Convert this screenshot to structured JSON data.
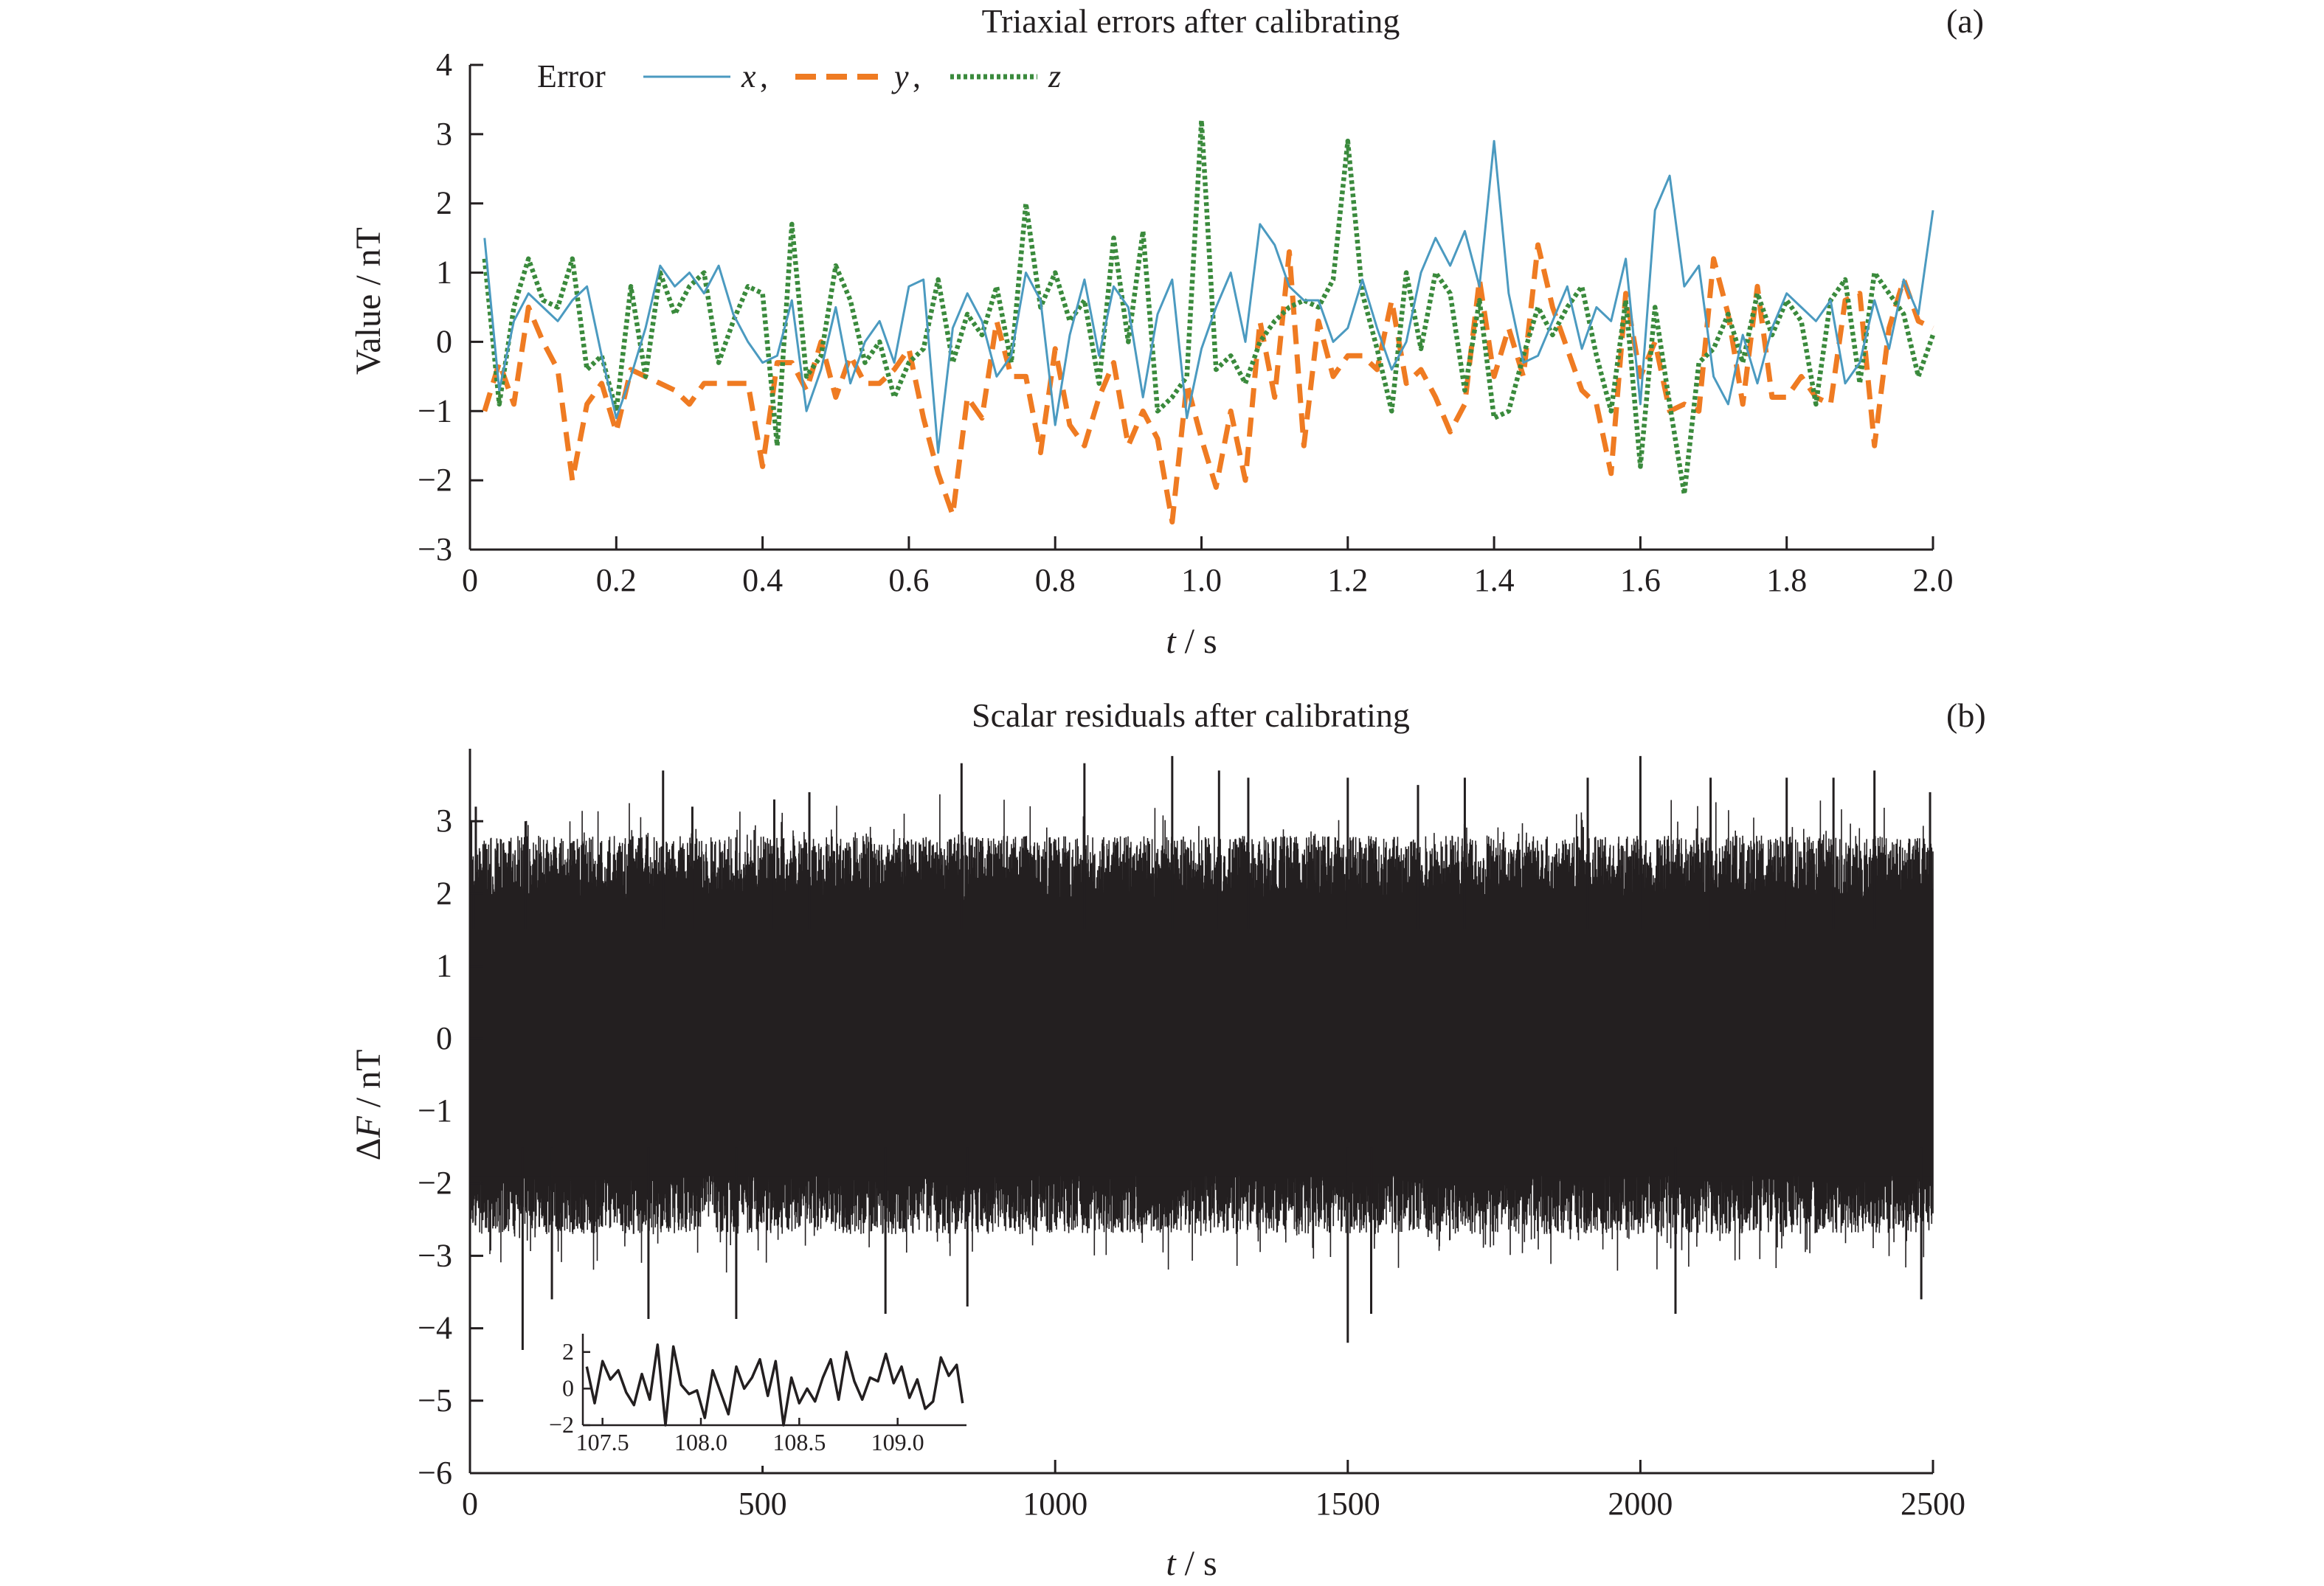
{
  "colors": {
    "x": "#4b9ac0",
    "y": "#ef7b22",
    "z": "#3a8a3c",
    "residual": "#231f20",
    "axis": "#231f20"
  },
  "panel_a": {
    "title": "Triaxial errors after calibrating",
    "tag": "(a)",
    "ylabel": "Value / nT",
    "xlabel_var": "t",
    "xlabel_unit": " / s",
    "legend": {
      "title": "Error",
      "x_label": "x",
      "y_label": "y",
      "z_label": "z",
      "sep": ","
    }
  },
  "panel_b": {
    "title": "Scalar residuals after calibrating",
    "tag": "(b)",
    "ylabel_prefix": "Δ",
    "ylabel_var": "F",
    "ylabel_unit": " / nT",
    "xlabel_var": "t",
    "xlabel_unit": " / s"
  },
  "chart_data": [
    {
      "type": "line",
      "title": "Triaxial errors after calibrating",
      "xlabel": "t / s",
      "ylabel": "Value / nT",
      "xlim": [
        0,
        2.0
      ],
      "ylim": [
        -3,
        4
      ],
      "xticks": [
        "0",
        "0.2",
        "0.4",
        "0.6",
        "0.8",
        "1.0",
        "1.2",
        "1.4",
        "1.6",
        "1.8",
        "2.0"
      ],
      "yticks": [
        "−3",
        "−2",
        "−1",
        "0",
        "1",
        "2",
        "3",
        "4"
      ],
      "legend_position": "top-left",
      "grid": false,
      "x": [
        0.02,
        0.04,
        0.06,
        0.08,
        0.1,
        0.12,
        0.14,
        0.16,
        0.18,
        0.2,
        0.22,
        0.24,
        0.26,
        0.28,
        0.3,
        0.32,
        0.34,
        0.36,
        0.38,
        0.4,
        0.42,
        0.44,
        0.46,
        0.48,
        0.5,
        0.52,
        0.54,
        0.56,
        0.58,
        0.6,
        0.62,
        0.64,
        0.66,
        0.68,
        0.7,
        0.72,
        0.74,
        0.76,
        0.78,
        0.8,
        0.82,
        0.84,
        0.86,
        0.88,
        0.9,
        0.92,
        0.94,
        0.96,
        0.98,
        1.0,
        1.02,
        1.04,
        1.06,
        1.08,
        1.1,
        1.12,
        1.14,
        1.16,
        1.18,
        1.2,
        1.22,
        1.24,
        1.26,
        1.28,
        1.3,
        1.32,
        1.34,
        1.36,
        1.38,
        1.4,
        1.42,
        1.44,
        1.46,
        1.48,
        1.5,
        1.52,
        1.54,
        1.56,
        1.58,
        1.6,
        1.62,
        1.64,
        1.66,
        1.68,
        1.7,
        1.72,
        1.74,
        1.76,
        1.78,
        1.8,
        1.82,
        1.84,
        1.86,
        1.88,
        1.9,
        1.92,
        1.94,
        1.96,
        1.98,
        2.0
      ],
      "series": [
        {
          "name": "x",
          "values": [
            1.5,
            -0.7,
            0.3,
            0.7,
            0.5,
            0.3,
            0.6,
            0.8,
            -0.2,
            -1.1,
            -0.5,
            0.2,
            1.1,
            0.8,
            1.0,
            0.7,
            1.1,
            0.4,
            0.0,
            -0.3,
            -0.2,
            0.6,
            -1.0,
            -0.4,
            0.5,
            -0.6,
            0.0,
            0.3,
            -0.3,
            0.8,
            0.9,
            -1.6,
            0.2,
            0.7,
            0.3,
            -0.5,
            -0.2,
            1.0,
            0.6,
            -1.2,
            0.1,
            0.9,
            -0.2,
            0.8,
            0.5,
            -0.8,
            0.4,
            0.9,
            -1.1,
            -0.1,
            0.5,
            1.0,
            0.0,
            1.7,
            1.4,
            0.8,
            0.6,
            0.6,
            0.0,
            0.2,
            0.9,
            0.2,
            -0.4,
            0.0,
            1.0,
            1.5,
            1.1,
            1.6,
            0.8,
            2.9,
            0.7,
            -0.3,
            -0.2,
            0.3,
            0.8,
            -0.1,
            0.5,
            0.3,
            1.2,
            -0.9,
            1.9,
            2.4,
            0.8,
            1.1,
            -0.5,
            -0.9,
            0.1,
            -0.6,
            0.2,
            0.7,
            0.5,
            0.3,
            0.6,
            -0.6,
            -0.3,
            0.6,
            -0.1,
            0.9,
            0.4,
            1.9
          ]
        },
        {
          "name": "y",
          "values": [
            -1.0,
            -0.3,
            -0.9,
            0.5,
            0.0,
            -0.4,
            -2.0,
            -0.9,
            -0.6,
            -1.3,
            -0.4,
            -0.5,
            -0.6,
            -0.7,
            -0.9,
            -0.6,
            -0.6,
            -0.6,
            -0.6,
            -1.8,
            -0.3,
            -0.3,
            -0.7,
            0.0,
            -0.8,
            -0.2,
            -0.6,
            -0.6,
            -0.4,
            -0.1,
            -1.1,
            -1.9,
            -2.5,
            -0.8,
            -1.1,
            0.3,
            -0.5,
            -0.5,
            -1.6,
            -0.1,
            -1.2,
            -1.5,
            -0.8,
            -0.3,
            -1.5,
            -1.0,
            -1.4,
            -2.6,
            -0.6,
            -1.4,
            -2.1,
            -1.0,
            -2.0,
            0.3,
            -0.8,
            1.3,
            -1.5,
            0.3,
            -0.5,
            -0.2,
            -0.2,
            -0.4,
            0.6,
            -0.6,
            -0.4,
            -0.8,
            -1.3,
            -0.9,
            0.9,
            -0.5,
            0.2,
            -0.5,
            1.4,
            0.5,
            -0.1,
            -0.7,
            -0.9,
            -1.9,
            0.7,
            -0.5,
            0.0,
            -1.0,
            -0.9,
            -1.0,
            1.2,
            0.4,
            -0.9,
            0.8,
            -0.8,
            -0.8,
            -0.5,
            -0.8,
            -0.9,
            0.6,
            0.7,
            -1.5,
            0.2,
            0.9,
            0.3,
            0.2
          ]
        },
        {
          "name": "z",
          "values": [
            1.2,
            -0.9,
            0.5,
            1.2,
            0.6,
            0.5,
            1.2,
            -0.4,
            -0.2,
            -1.0,
            0.8,
            -0.5,
            1.0,
            0.4,
            0.8,
            1.0,
            -0.3,
            0.3,
            0.8,
            0.7,
            -1.5,
            1.7,
            -0.5,
            -0.2,
            1.1,
            0.6,
            -0.3,
            0.0,
            -0.8,
            -0.3,
            -0.1,
            0.9,
            -0.3,
            0.4,
            0.1,
            0.8,
            -0.3,
            2.0,
            0.5,
            1.0,
            0.3,
            0.6,
            -0.6,
            1.5,
            0.0,
            1.6,
            -1.0,
            -0.8,
            -0.5,
            3.2,
            -0.4,
            -0.2,
            -0.6,
            0.0,
            0.3,
            0.5,
            0.6,
            0.5,
            0.9,
            2.9,
            0.7,
            -0.1,
            -1.0,
            1.0,
            -0.1,
            1.0,
            0.7,
            -0.7,
            0.6,
            -1.1,
            -1.0,
            -0.2,
            0.5,
            0.1,
            0.5,
            0.8,
            -0.2,
            -1.0,
            0.6,
            -1.8,
            0.5,
            -0.9,
            -2.2,
            -0.3,
            -0.1,
            0.4,
            -0.3,
            0.7,
            0.1,
            0.6,
            0.3,
            -0.9,
            0.6,
            0.9,
            -0.6,
            1.0,
            0.7,
            0.4,
            -0.5,
            0.1
          ]
        }
      ]
    },
    {
      "type": "line",
      "title": "Scalar residuals after calibrating",
      "xlabel": "t / s",
      "ylabel": "ΔF / nT",
      "xlim": [
        0,
        2500
      ],
      "ylim": [
        -6,
        4
      ],
      "xticks": [
        "0",
        "500",
        "1000",
        "1500",
        "2000",
        "2500"
      ],
      "yticks": [
        "−6",
        "−5",
        "−4",
        "−3",
        "−2",
        "−1",
        "0",
        "1",
        "2",
        "3"
      ],
      "grid": false,
      "band": {
        "core_upper": 2.8,
        "core_lower": -2.7
      },
      "peaks_upper": {
        "x": [
          0,
          2,
          10,
          95,
          330,
          380,
          520,
          580,
          840,
          1050,
          1200,
          1280,
          1330,
          1500,
          1620,
          1700,
          1910,
          2000,
          2120,
          2250,
          2330,
          2400,
          2495
        ],
        "values": [
          4.0,
          3.0,
          3.2,
          3.0,
          3.7,
          3.2,
          3.3,
          3.4,
          3.8,
          3.8,
          3.9,
          3.7,
          3.6,
          3.6,
          3.5,
          3.6,
          3.6,
          3.9,
          3.6,
          3.6,
          3.6,
          3.7,
          3.4
        ]
      },
      "peaks_lower": {
        "x": [
          0,
          90,
          140,
          305,
          455,
          710,
          850,
          1500,
          1540,
          2060,
          2480
        ],
        "values": [
          -3.9,
          -4.3,
          -3.6,
          -4.1,
          -4.3,
          -3.8,
          -3.7,
          -4.2,
          -3.8,
          -3.8,
          -3.6
        ]
      },
      "inset": {
        "xlim": [
          107.4,
          109.35
        ],
        "ylim": [
          -2,
          3
        ],
        "xticks": [
          "107.5",
          "108.0",
          "108.5",
          "109.0"
        ],
        "yticks": [
          "−2",
          "0",
          "2"
        ],
        "x": [
          107.42,
          107.46,
          107.5,
          107.54,
          107.58,
          107.62,
          107.66,
          107.7,
          107.74,
          107.78,
          107.82,
          107.86,
          107.9,
          107.94,
          107.98,
          108.02,
          108.06,
          108.1,
          108.14,
          108.18,
          108.22,
          108.26,
          108.3,
          108.34,
          108.38,
          108.42,
          108.46,
          108.5,
          108.54,
          108.58,
          108.62,
          108.66,
          108.7,
          108.74,
          108.78,
          108.82,
          108.86,
          108.9,
          108.94,
          108.98,
          109.02,
          109.06,
          109.1,
          109.14,
          109.18,
          109.22,
          109.26,
          109.3,
          109.33
        ],
        "values": [
          1.2,
          -0.8,
          1.5,
          0.5,
          1.0,
          -0.2,
          -0.9,
          0.8,
          -0.6,
          2.4,
          -2.0,
          2.3,
          0.2,
          -0.3,
          -0.1,
          -1.6,
          1.0,
          -0.2,
          -1.4,
          1.2,
          0.0,
          0.6,
          1.6,
          -0.4,
          1.5,
          -2.0,
          0.6,
          -0.8,
          0.0,
          -0.7,
          0.6,
          1.6,
          -0.6,
          2.0,
          0.4,
          -0.6,
          0.6,
          0.4,
          1.9,
          0.3,
          1.2,
          -0.5,
          0.5,
          -1.1,
          -0.7,
          1.7,
          0.7,
          1.3,
          -0.8
        ]
      }
    }
  ]
}
